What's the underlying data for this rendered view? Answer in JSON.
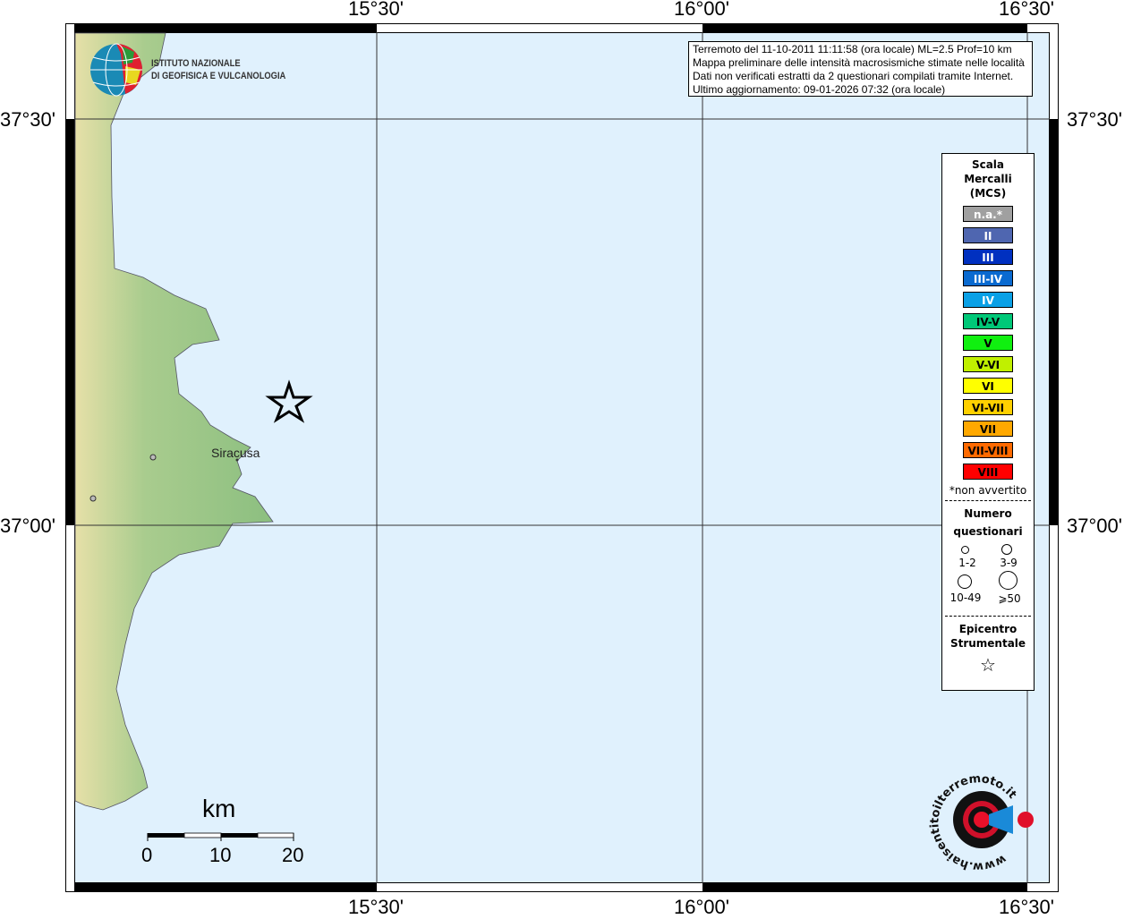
{
  "axes": {
    "top": [
      "15°30'",
      "16°00'",
      "16°30'"
    ],
    "bottom": [
      "15°30'",
      "16°00'",
      "16°30'"
    ],
    "left": [
      "37°30'",
      "37°00'"
    ],
    "right": [
      "37°30'",
      "37°00'"
    ]
  },
  "logo": {
    "line1": "ISTITUTO NAZIONALE",
    "line2": "DI GEOFISICA E VULCANOLOGIA"
  },
  "info": [
    "Terremoto del 11-10-2011 11:11:58 (ora locale) ML=2.5 Prof=10 km",
    "Mappa preliminare delle intensità macrosismiche stimate nelle località",
    "Dati non verificati estratti da 2 questionari compilati tramite Internet.",
    "Ultimo aggiornamento: 09-01-2026 07:32 (ora locale)"
  ],
  "legend": {
    "title": [
      "Scala",
      "Mercalli",
      "(MCS)"
    ],
    "scale": [
      {
        "label": "n.a.*",
        "color": "#a0a0a0",
        "text": "#fff"
      },
      {
        "label": "II",
        "color": "#4f66b0",
        "text": "#fff"
      },
      {
        "label": "III",
        "color": "#0030c0",
        "text": "#fff"
      },
      {
        "label": "III-IV",
        "color": "#0a6ad0",
        "text": "#fff"
      },
      {
        "label": "IV",
        "color": "#0aa0e6",
        "text": "#fff"
      },
      {
        "label": "IV-V",
        "color": "#00c878",
        "text": "#000"
      },
      {
        "label": "V",
        "color": "#10f010",
        "text": "#000"
      },
      {
        "label": "V-VI",
        "color": "#c0f000",
        "text": "#000"
      },
      {
        "label": "VI",
        "color": "#ffff00",
        "text": "#000"
      },
      {
        "label": "VI-VII",
        "color": "#ffd000",
        "text": "#000"
      },
      {
        "label": "VII",
        "color": "#ffa800",
        "text": "#000"
      },
      {
        "label": "VII-VIII",
        "color": "#ff6a00",
        "text": "#000"
      },
      {
        "label": "VIII",
        "color": "#ff0000",
        "text": "#000"
      }
    ],
    "note": "*non avvertito",
    "count_title": [
      "Numero",
      "questionari"
    ],
    "counts": [
      "1-2",
      "3-9",
      "10-49",
      "⩾50"
    ],
    "epi_title": [
      "Epicentro",
      "Strumentale"
    ]
  },
  "places": {
    "city": "Siracusa"
  },
  "scalebar": {
    "unit": "km",
    "labels": [
      "0",
      "10",
      "20"
    ]
  },
  "brand": {
    "text": "www.haisentitoilterremoto.it"
  },
  "colors": {
    "sea": "#e0f1fd",
    "land": "#8fbf7f"
  }
}
